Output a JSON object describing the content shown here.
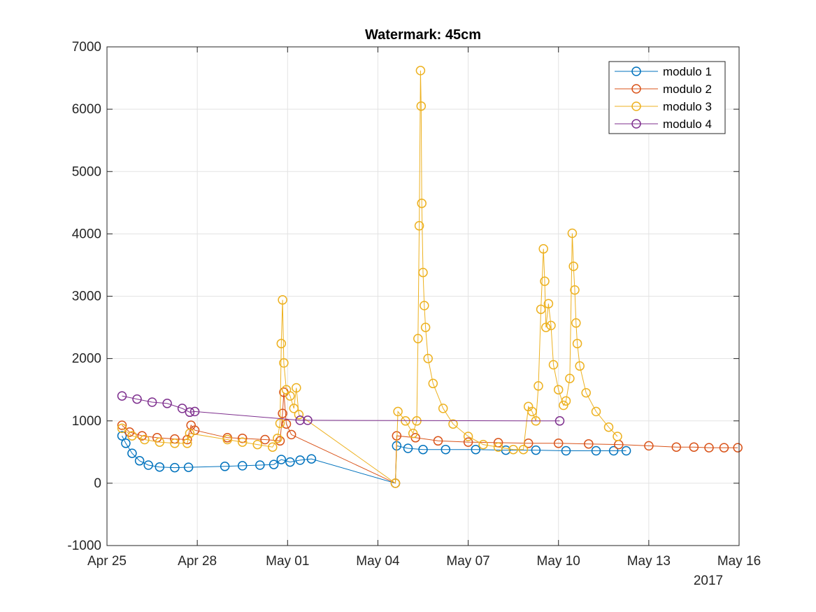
{
  "chart_data": {
    "type": "line",
    "title": "Watermark: 45cm",
    "xlabel": "",
    "ylabel": "",
    "x_tick_labels": [
      "Apr 25",
      "Apr 28",
      "May 01",
      "May 04",
      "May 07",
      "May 10",
      "May 13",
      "May 16"
    ],
    "x_year_label": "2017",
    "xlim": [
      "2017-04-25",
      "2017-05-16"
    ],
    "ylim": [
      -1000,
      7000
    ],
    "y_ticks": [
      -1000,
      0,
      1000,
      2000,
      3000,
      4000,
      5000,
      6000,
      7000
    ],
    "grid": true,
    "legend_position": "top-right",
    "marker": "open-circle",
    "series": [
      {
        "name": "modulo 1",
        "color": "#0072BD",
        "points": [
          [
            "2017-04-25T12:00",
            760
          ],
          [
            "2017-04-25T15:00",
            640
          ],
          [
            "2017-04-25T20:00",
            480
          ],
          [
            "2017-04-26T02:00",
            360
          ],
          [
            "2017-04-26T09:00",
            290
          ],
          [
            "2017-04-26T18:00",
            260
          ],
          [
            "2017-04-27T06:00",
            250
          ],
          [
            "2017-04-27T17:00",
            255
          ],
          [
            "2017-04-28T22:00",
            270
          ],
          [
            "2017-04-29T12:00",
            280
          ],
          [
            "2017-04-30T02:00",
            290
          ],
          [
            "2017-04-30T13:00",
            300
          ],
          [
            "2017-04-30T19:00",
            380
          ],
          [
            "2017-05-01T02:00",
            340
          ],
          [
            "2017-05-01T10:00",
            370
          ],
          [
            "2017-05-01T19:00",
            390
          ],
          [
            "2017-05-04T14:00",
            0
          ],
          [
            "2017-05-04T15:00",
            600
          ],
          [
            "2017-05-05T00:00",
            560
          ],
          [
            "2017-05-05T12:00",
            540
          ],
          [
            "2017-05-06T06:00",
            540
          ],
          [
            "2017-05-07T06:00",
            540
          ],
          [
            "2017-05-08T06:00",
            530
          ],
          [
            "2017-05-09T06:00",
            530
          ],
          [
            "2017-05-10T06:00",
            520
          ],
          [
            "2017-05-11T06:00",
            520
          ],
          [
            "2017-05-11T20:00",
            520
          ],
          [
            "2017-05-12T06:00",
            520
          ]
        ]
      },
      {
        "name": "modulo 2",
        "color": "#D95319",
        "points": [
          [
            "2017-04-25T12:00",
            930
          ],
          [
            "2017-04-25T18:00",
            820
          ],
          [
            "2017-04-26T04:00",
            760
          ],
          [
            "2017-04-26T16:00",
            730
          ],
          [
            "2017-04-27T06:00",
            710
          ],
          [
            "2017-04-27T16:00",
            700
          ],
          [
            "2017-04-27T19:00",
            930
          ],
          [
            "2017-04-27T22:00",
            850
          ],
          [
            "2017-04-29T00:00",
            730
          ],
          [
            "2017-04-29T12:00",
            720
          ],
          [
            "2017-04-30T06:00",
            700
          ],
          [
            "2017-04-30T18:00",
            680
          ],
          [
            "2017-04-30T20:00",
            1120
          ],
          [
            "2017-04-30T21:00",
            1460
          ],
          [
            "2017-04-30T23:00",
            950
          ],
          [
            "2017-05-01T03:00",
            780
          ],
          [
            "2017-05-04T14:00",
            0
          ],
          [
            "2017-05-04T15:00",
            760
          ],
          [
            "2017-05-05T06:00",
            730
          ],
          [
            "2017-05-06T00:00",
            680
          ],
          [
            "2017-05-07T00:00",
            660
          ],
          [
            "2017-05-08T00:00",
            650
          ],
          [
            "2017-05-09T00:00",
            640
          ],
          [
            "2017-05-10T00:00",
            640
          ],
          [
            "2017-05-11T00:00",
            630
          ],
          [
            "2017-05-12T00:00",
            620
          ],
          [
            "2017-05-13T00:00",
            600
          ],
          [
            "2017-05-13T22:00",
            580
          ],
          [
            "2017-05-14T12:00",
            580
          ],
          [
            "2017-05-15T00:00",
            570
          ],
          [
            "2017-05-15T12:00",
            570
          ],
          [
            "2017-05-15T23:00",
            570
          ]
        ]
      },
      {
        "name": "modulo 3",
        "color": "#EDB120",
        "points": [
          [
            "2017-04-25T12:00",
            880
          ],
          [
            "2017-04-25T20:00",
            760
          ],
          [
            "2017-04-26T06:00",
            700
          ],
          [
            "2017-04-26T18:00",
            660
          ],
          [
            "2017-04-27T06:00",
            640
          ],
          [
            "2017-04-27T16:00",
            640
          ],
          [
            "2017-04-27T18:00",
            800
          ],
          [
            "2017-04-29T00:00",
            700
          ],
          [
            "2017-04-29T12:00",
            660
          ],
          [
            "2017-04-30T00:00",
            620
          ],
          [
            "2017-04-30T12:00",
            580
          ],
          [
            "2017-04-30T16:00",
            720
          ],
          [
            "2017-04-30T18:00",
            960
          ],
          [
            "2017-04-30T19:00",
            2240
          ],
          [
            "2017-04-30T20:00",
            2940
          ],
          [
            "2017-04-30T21:00",
            1930
          ],
          [
            "2017-04-30T23:00",
            1500
          ],
          [
            "2017-05-01T02:00",
            1400
          ],
          [
            "2017-05-01T05:00",
            1200
          ],
          [
            "2017-05-01T07:00",
            1530
          ],
          [
            "2017-05-01T09:00",
            1100
          ],
          [
            "2017-05-04T14:00",
            0
          ],
          [
            "2017-05-04T16:00",
            1150
          ],
          [
            "2017-05-04T22:00",
            1000
          ],
          [
            "2017-05-05T04:00",
            800
          ],
          [
            "2017-05-05T07:00",
            1000
          ],
          [
            "2017-05-05T08:00",
            2320
          ],
          [
            "2017-05-05T09:00",
            4130
          ],
          [
            "2017-05-05T10:00",
            6620
          ],
          [
            "2017-05-05T10:30",
            6050
          ],
          [
            "2017-05-05T11:00",
            4490
          ],
          [
            "2017-05-05T12:00",
            3380
          ],
          [
            "2017-05-05T13:00",
            2850
          ],
          [
            "2017-05-05T14:00",
            2500
          ],
          [
            "2017-05-05T16:00",
            2000
          ],
          [
            "2017-05-05T20:00",
            1600
          ],
          [
            "2017-05-06T04:00",
            1200
          ],
          [
            "2017-05-06T12:00",
            950
          ],
          [
            "2017-05-07T00:00",
            750
          ],
          [
            "2017-05-07T12:00",
            620
          ],
          [
            "2017-05-08T00:00",
            580
          ],
          [
            "2017-05-08T12:00",
            540
          ],
          [
            "2017-05-08T20:00",
            540
          ],
          [
            "2017-05-09T00:00",
            1230
          ],
          [
            "2017-05-09T03:00",
            1150
          ],
          [
            "2017-05-09T06:00",
            1000
          ],
          [
            "2017-05-09T08:00",
            1560
          ],
          [
            "2017-05-09T10:00",
            2790
          ],
          [
            "2017-05-09T12:00",
            3760
          ],
          [
            "2017-05-09T13:00",
            3240
          ],
          [
            "2017-05-09T14:00",
            2500
          ],
          [
            "2017-05-09T16:00",
            2880
          ],
          [
            "2017-05-09T18:00",
            2530
          ],
          [
            "2017-05-09T20:00",
            1900
          ],
          [
            "2017-05-10T00:00",
            1500
          ],
          [
            "2017-05-10T04:00",
            1250
          ],
          [
            "2017-05-10T06:00",
            1320
          ],
          [
            "2017-05-10T09:00",
            1680
          ],
          [
            "2017-05-10T11:00",
            4010
          ],
          [
            "2017-05-10T12:00",
            3480
          ],
          [
            "2017-05-10T13:00",
            3100
          ],
          [
            "2017-05-10T14:00",
            2570
          ],
          [
            "2017-05-10T15:00",
            2240
          ],
          [
            "2017-05-10T17:00",
            1880
          ],
          [
            "2017-05-10T22:00",
            1450
          ],
          [
            "2017-05-11T06:00",
            1150
          ],
          [
            "2017-05-11T16:00",
            900
          ],
          [
            "2017-05-11T23:00",
            750
          ]
        ]
      },
      {
        "name": "modulo 4",
        "color": "#7E2F8E",
        "points": [
          [
            "2017-04-25T12:00",
            1400
          ],
          [
            "2017-04-26T00:00",
            1350
          ],
          [
            "2017-04-26T12:00",
            1300
          ],
          [
            "2017-04-27T00:00",
            1280
          ],
          [
            "2017-04-27T12:00",
            1200
          ],
          [
            "2017-04-27T18:00",
            1140
          ],
          [
            "2017-04-27T22:00",
            1150
          ],
          [
            "2017-05-01T10:00",
            1010
          ],
          [
            "2017-05-01T16:00",
            1010
          ],
          [
            "2017-05-10T01:00",
            1000
          ]
        ]
      }
    ]
  }
}
